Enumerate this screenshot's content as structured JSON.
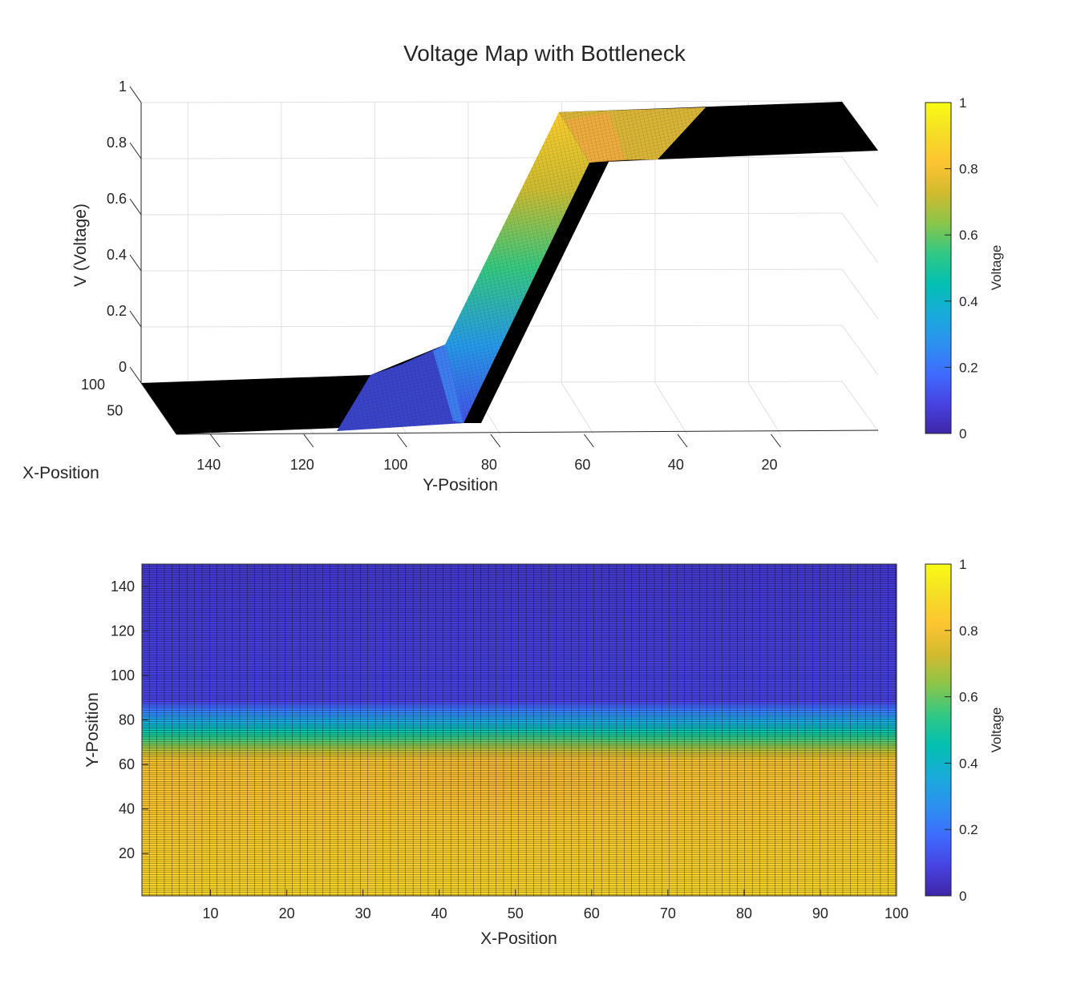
{
  "title": "Voltage Map with Bottleneck",
  "colormap": [
    "#3e26a8",
    "#4743e2",
    "#3e6cfe",
    "#2c91ef",
    "#18acd9",
    "#03c0b0",
    "#32c883",
    "#8ac54a",
    "#d2ba2f",
    "#fdc432",
    "#f5de25",
    "#f9fb15"
  ],
  "chart_data": [
    {
      "type": "surface",
      "title": "Voltage Map with Bottleneck",
      "xlabel": "X-Position",
      "ylabel": "Y-Position",
      "zlabel": "V (Voltage)",
      "x_range": [
        1,
        100
      ],
      "y_range": [
        1,
        150
      ],
      "z_range": [
        0,
        1
      ],
      "x_ticks": [
        50,
        100
      ],
      "y_ticks": [
        20,
        40,
        60,
        80,
        100,
        120,
        140
      ],
      "z_ticks": [
        0,
        0.2,
        0.4,
        0.6,
        0.8,
        1
      ],
      "grid": true,
      "voltage_profile": {
        "high_region_y": [
          1,
          62
        ],
        "transition_y": [
          62,
          88
        ],
        "low_region_y": [
          88,
          150
        ],
        "bottleneck_x": [
          40,
          60
        ]
      },
      "colorbar": {
        "label": "Voltage",
        "ticks": [
          0,
          0.2,
          0.4,
          0.6,
          0.8,
          1
        ],
        "range": [
          0,
          1
        ]
      }
    },
    {
      "type": "heatmap",
      "xlabel": "X-Position",
      "ylabel": "Y-Position",
      "x_range": [
        1,
        100
      ],
      "y_range": [
        1,
        150
      ],
      "x_ticks": [
        10,
        20,
        30,
        40,
        50,
        60,
        70,
        80,
        90,
        100
      ],
      "y_ticks": [
        20,
        40,
        60,
        80,
        100,
        120,
        140
      ],
      "colorbar": {
        "label": "Voltage",
        "ticks": [
          0,
          0.2,
          0.4,
          0.6,
          0.8,
          1
        ],
        "range": [
          0,
          1
        ]
      }
    }
  ]
}
